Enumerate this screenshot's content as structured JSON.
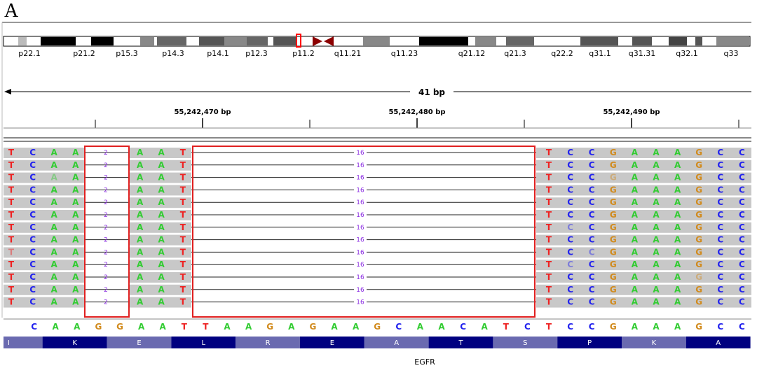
{
  "panel_label": "A",
  "ideogram": {
    "bands": [
      "p22.1",
      "p21.2",
      "p15.3",
      "p14.3",
      "p14.1",
      "p12.3",
      "p11.2",
      "q11.21",
      "q11.23",
      "q21.12",
      "q21.3",
      "q22.2",
      "q31.1",
      "q31.31",
      "q32.1",
      "q33"
    ],
    "current_band_marker": "p11.2"
  },
  "ruler": {
    "span_label": "41 bp",
    "tick_labels": [
      "55,242,470 bp",
      "55,242,480 bp",
      "55,242,490 bp"
    ]
  },
  "alignment": {
    "read_count": 13,
    "left_bases": [
      "T",
      "C",
      "A",
      "A"
    ],
    "deletion1_label": "2",
    "mid_bases": [
      "A",
      "A",
      "T"
    ],
    "deletion2_label": "16",
    "right_bases": [
      "T",
      "C",
      "C",
      "G",
      "A",
      "A",
      "A",
      "G",
      "C",
      "C"
    ]
  },
  "reference_sequence": [
    "C",
    "A",
    "A",
    "G",
    "G",
    "A",
    "A",
    "T",
    "T",
    "A",
    "A",
    "G",
    "A",
    "G",
    "A",
    "A",
    "G",
    "C",
    "A",
    "A",
    "C",
    "A",
    "T",
    "C",
    "T",
    "C",
    "C",
    "G",
    "A",
    "A",
    "A",
    "G",
    "C",
    "C"
  ],
  "amino_acids": [
    "I",
    "K",
    "E",
    "L",
    "R",
    "E",
    "A",
    "T",
    "S",
    "P",
    "K",
    "A"
  ],
  "gene_name": "EGFR",
  "colors": {
    "A": "#33cc33",
    "C": "#2222ee",
    "G": "#d18a1c",
    "T": "#ee2222",
    "deletion_label": "#8a2be2",
    "highlight_box": "#e02020",
    "read_bg": "#c8c8c8",
    "aa_light": "#6a6ab0",
    "aa_dark": "#000080"
  }
}
